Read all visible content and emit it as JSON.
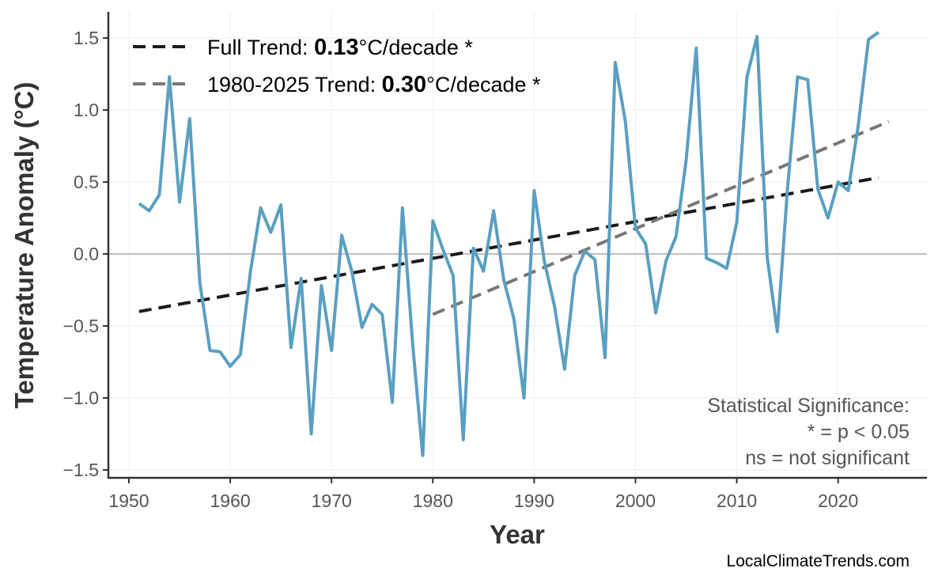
{
  "chart_data": {
    "type": "line",
    "xlabel": "Year",
    "ylabel": "Temperature Anomaly (°C)",
    "xlim": [
      1947.5,
      2028.5
    ],
    "ylim": [
      -1.55,
      1.65
    ],
    "x_ticks": [
      1950,
      1960,
      1970,
      1980,
      1990,
      2000,
      2010,
      2020
    ],
    "y_ticks": [
      -1.5,
      -1.0,
      -0.5,
      0.0,
      0.5,
      1.0,
      1.5
    ],
    "y_tick_labels": [
      "−1.5",
      "−1.0",
      "−0.5",
      "0.0",
      "0.5",
      "1.0",
      "1.5"
    ],
    "grid": true,
    "zero_line": true,
    "series": [
      {
        "color": "#5a9fc0",
        "x": [
          1951,
          1952,
          1953,
          1954,
          1955,
          1956,
          1957,
          1958,
          1959,
          1960,
          1961,
          1962,
          1963,
          1964,
          1965,
          1966,
          1967,
          1968,
          1969,
          1970,
          1971,
          1972,
          1973,
          1974,
          1975,
          1976,
          1977,
          1978,
          1979,
          1980,
          1981,
          1982,
          1983,
          1984,
          1985,
          1986,
          1987,
          1988,
          1989,
          1990,
          1991,
          1992,
          1993,
          1994,
          1995,
          1996,
          1997,
          1998,
          1999,
          2000,
          2001,
          2002,
          2003,
          2004,
          2005,
          2006,
          2007,
          2008,
          2009,
          2010,
          2011,
          2012,
          2013,
          2014,
          2015,
          2016,
          2017,
          2018,
          2019,
          2020,
          2021,
          2022,
          2023,
          2024
        ],
        "y": [
          0.35,
          0.3,
          0.41,
          1.23,
          0.36,
          0.94,
          -0.2,
          -0.67,
          -0.68,
          -0.78,
          -0.7,
          -0.12,
          0.32,
          0.15,
          0.34,
          -0.65,
          -0.17,
          -1.25,
          -0.22,
          -0.67,
          0.13,
          -0.12,
          -0.51,
          -0.35,
          -0.42,
          -1.03,
          0.32,
          -0.62,
          -1.4,
          0.23,
          0.03,
          -0.15,
          -1.29,
          0.04,
          -0.12,
          0.3,
          -0.18,
          -0.45,
          -1.0,
          0.44,
          -0.05,
          -0.36,
          -0.8,
          -0.15,
          0.02,
          -0.04,
          -0.72,
          1.33,
          0.92,
          0.18,
          0.07,
          -0.41,
          -0.05,
          0.12,
          0.65,
          1.43,
          -0.03,
          -0.06,
          -0.1,
          0.22,
          1.23,
          1.51,
          -0.02,
          -0.54,
          0.45,
          1.23,
          1.21,
          0.45,
          0.25,
          0.5,
          0.44,
          0.9,
          1.49,
          1.54
        ]
      }
    ],
    "trends": [
      {
        "label_prefix": "Full Trend: ",
        "value": "0.13",
        "label_suffix": "°C/decade *",
        "color": "#1a1a1a",
        "x": [
          1951,
          2024
        ],
        "y": [
          -0.4,
          0.53
        ]
      },
      {
        "label_prefix": "1980-2025 Trend: ",
        "value": "0.30",
        "label_suffix": "°C/decade *",
        "color": "#777777",
        "x": [
          1980,
          2025
        ],
        "y": [
          -0.42,
          0.92
        ]
      }
    ],
    "legend_position": "top-left",
    "annotation": [
      "Statistical Significance:",
      "* = p < 0.05",
      "ns = not significant"
    ],
    "credit": "LocalClimateTrends.com"
  }
}
